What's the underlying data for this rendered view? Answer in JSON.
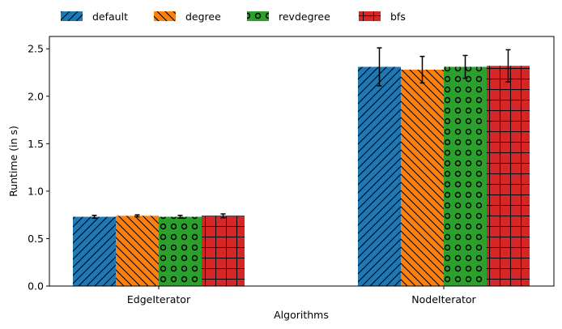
{
  "chart_data": {
    "type": "bar",
    "title": "",
    "xlabel": "Algorithms",
    "ylabel": "Runtime (in s)",
    "ylim": [
      0,
      2.63
    ],
    "yticks": [
      "0.0",
      "0.5",
      "1.0",
      "1.5",
      "2.0",
      "2.5"
    ],
    "grid": false,
    "legend_position": "top, horizontal, outside the axes",
    "categories": [
      "EdgeIterator",
      "NodeIterator"
    ],
    "series": [
      {
        "name": "default",
        "color": "#1f77b4",
        "hatch": "diagonal-forward",
        "values": [
          0.73,
          2.31
        ],
        "errors": [
          0.015,
          0.2
        ]
      },
      {
        "name": "degree",
        "color": "#ff7f0e",
        "hatch": "diagonal-back",
        "values": [
          0.74,
          2.28
        ],
        "errors": [
          0.01,
          0.14
        ]
      },
      {
        "name": "revdegree",
        "color": "#2ca02c",
        "hatch": "circles",
        "values": [
          0.73,
          2.31
        ],
        "errors": [
          0.015,
          0.12
        ]
      },
      {
        "name": "bfs",
        "color": "#d62728",
        "hatch": "grid",
        "values": [
          0.74,
          2.32
        ],
        "errors": [
          0.02,
          0.17
        ]
      }
    ]
  }
}
